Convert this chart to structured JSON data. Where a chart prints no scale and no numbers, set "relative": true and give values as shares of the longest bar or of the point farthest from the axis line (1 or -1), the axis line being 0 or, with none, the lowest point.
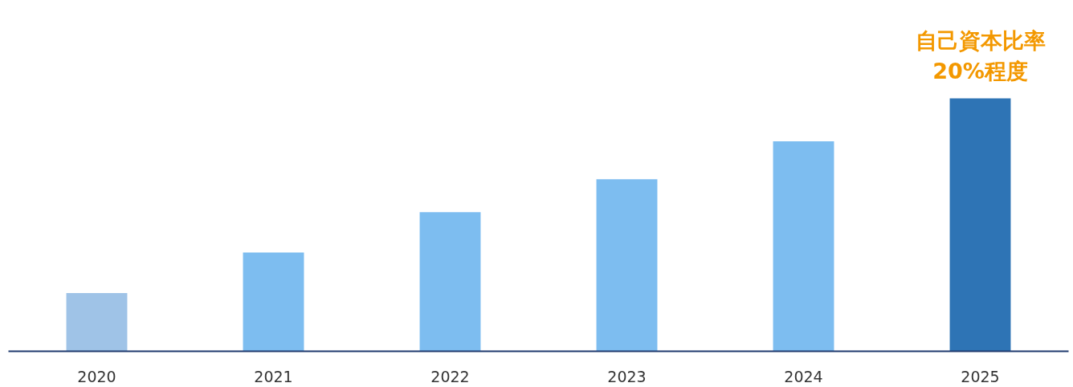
{
  "chart_data": {
    "type": "bar",
    "relative": true,
    "categories": [
      "2020",
      "2021",
      "2022",
      "2023",
      "2024",
      "2025"
    ],
    "values": [
      0.23,
      0.39,
      0.55,
      0.68,
      0.83,
      1
    ],
    "colors": [
      "#9fc3e7",
      "#7dbdf0",
      "#7dbdf0",
      "#7dbdf0",
      "#7dbdf0",
      "#2e74b5"
    ],
    "annotations": [
      {
        "text": "自己資本比率\n20%程度",
        "x": "2025",
        "y": 1
      }
    ],
    "grid": false
  }
}
